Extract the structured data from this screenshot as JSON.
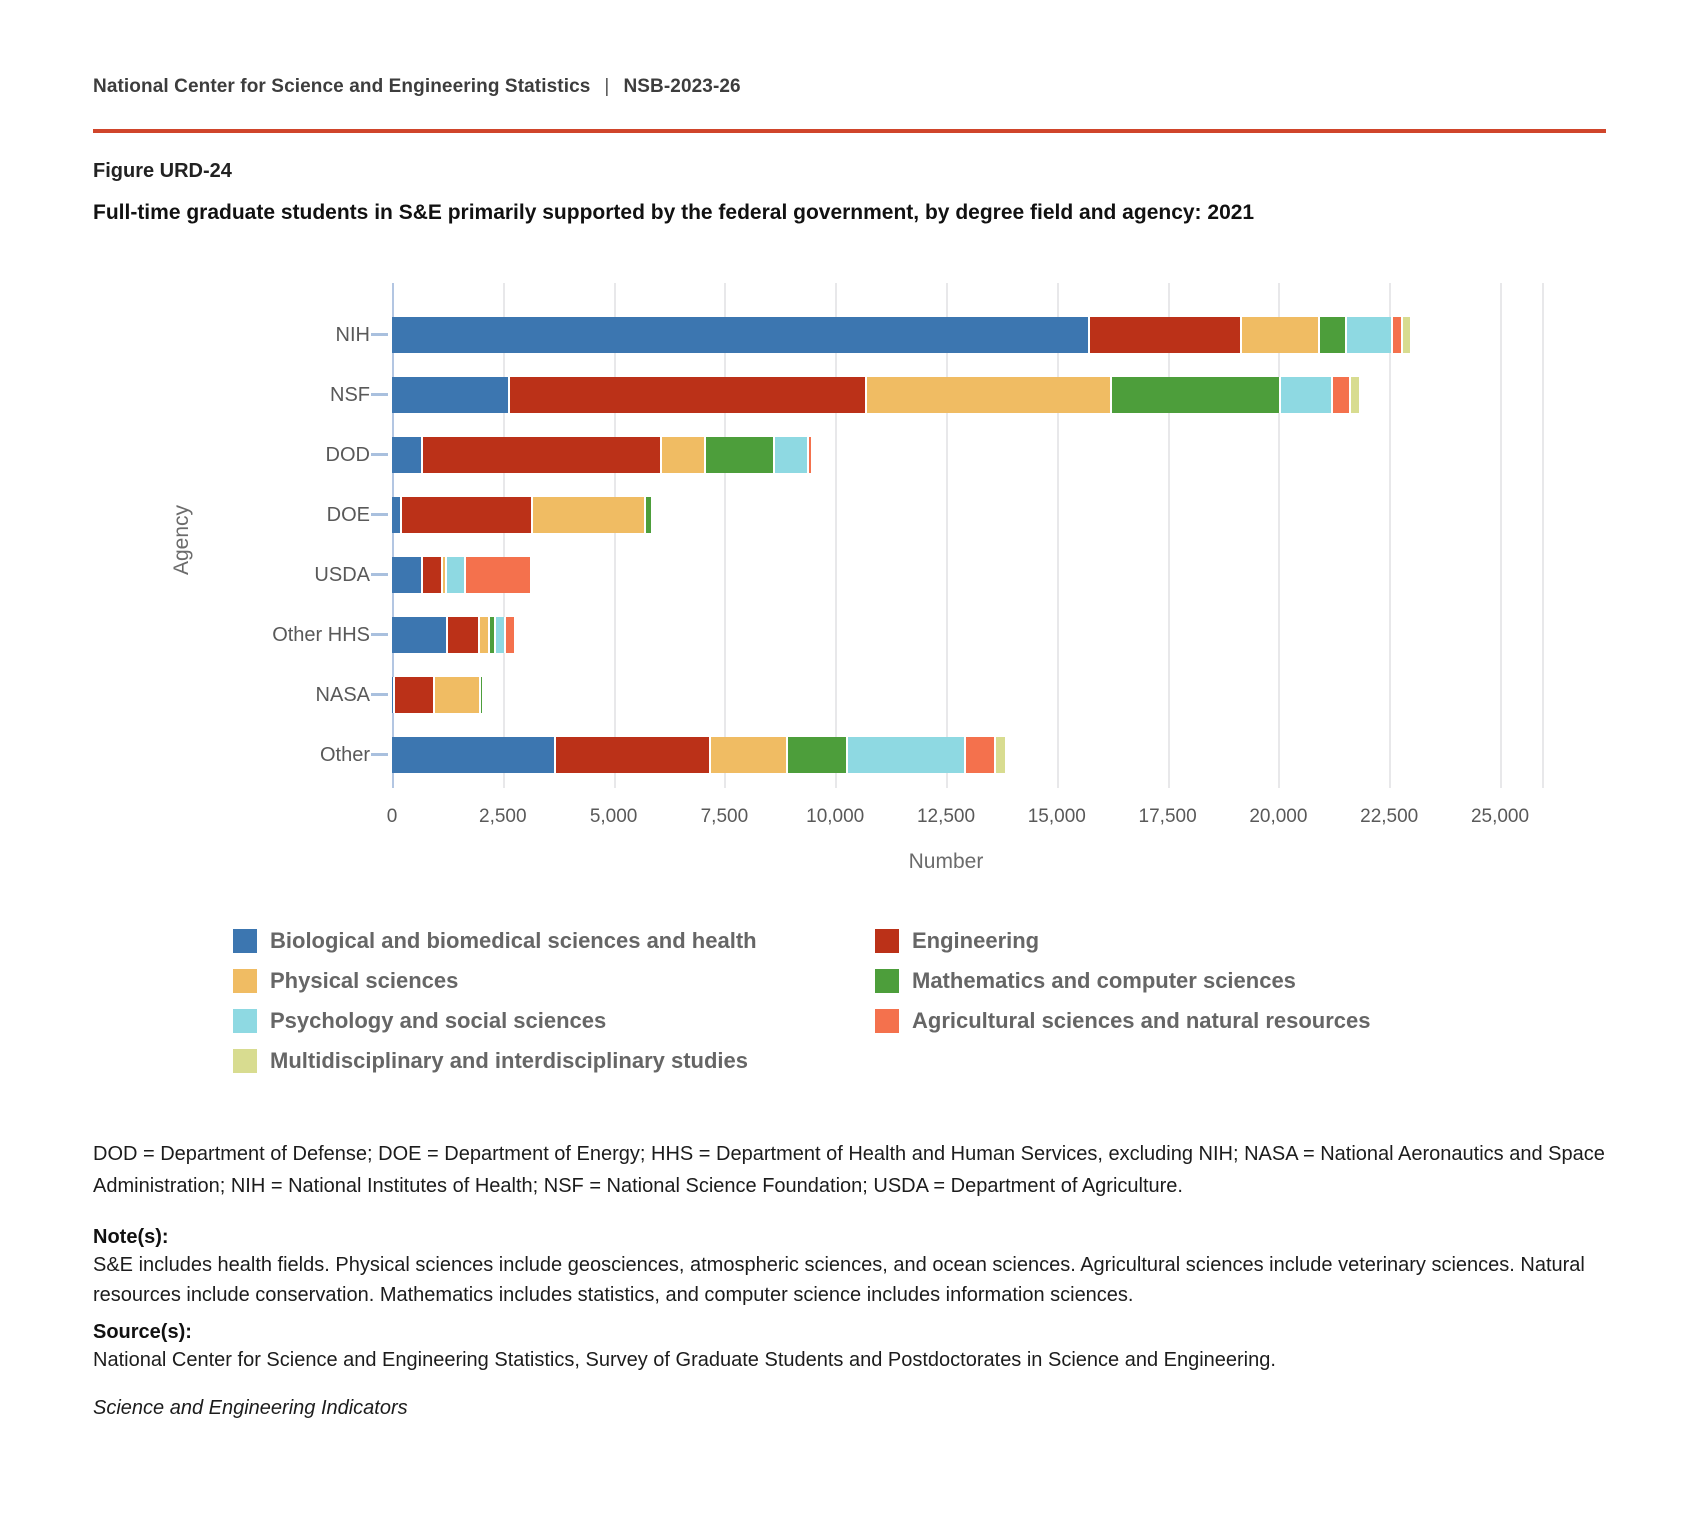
{
  "header": {
    "org": "National Center for Science and Engineering Statistics",
    "separator": "|",
    "report_id": "NSB-2023-26"
  },
  "figure": {
    "label": "Figure URD-24",
    "title": "Full-time graduate students in S&E primarily supported by the federal government, by degree field and agency: 2021"
  },
  "chart_data": {
    "type": "bar",
    "orientation": "horizontal",
    "stacked": true,
    "categories": [
      "NIH",
      "NSF",
      "DOD",
      "DOE",
      "USDA",
      "Other HHS",
      "NASA",
      "Other"
    ],
    "series": [
      {
        "name": "Biological and biomedical sciences and health",
        "color": "#3c76b0",
        "values": [
          15750,
          2660,
          690,
          230,
          710,
          1270,
          60,
          3700
        ]
      },
      {
        "name": "Engineering",
        "color": "#bb3118",
        "values": [
          3430,
          8050,
          5410,
          2950,
          430,
          710,
          900,
          3500
        ]
      },
      {
        "name": "Physical sciences",
        "color": "#f0bc63",
        "values": [
          1750,
          5540,
          990,
          2560,
          100,
          240,
          1050,
          1740
        ]
      },
      {
        "name": "Mathematics and computer sciences",
        "color": "#4d9e3b",
        "values": [
          610,
          3810,
          1560,
          160,
          0,
          130,
          60,
          1360
        ]
      },
      {
        "name": "Psychology and social sciences",
        "color": "#8ed9e2",
        "values": [
          1050,
          1170,
          750,
          0,
          420,
          230,
          0,
          2660
        ]
      },
      {
        "name": "Agricultural sciences and natural resources",
        "color": "#f4714d",
        "values": [
          230,
          400,
          90,
          0,
          1500,
          210,
          0,
          660
        ]
      },
      {
        "name": "Multidisciplinary and interdisciplinary studies",
        "color": "#d8dc90",
        "values": [
          190,
          230,
          0,
          0,
          0,
          0,
          0,
          250
        ]
      }
    ],
    "xlabel": "Number",
    "ylabel": "Agency",
    "xlim": [
      0,
      25000
    ],
    "xticks": [
      {
        "value": 0,
        "label": "0"
      },
      {
        "value": 2500,
        "label": "2,500"
      },
      {
        "value": 5000,
        "label": "5,000"
      },
      {
        "value": 7500,
        "label": "7,500"
      },
      {
        "value": 10000,
        "label": "10,000"
      },
      {
        "value": 12500,
        "label": "12,500"
      },
      {
        "value": 15000,
        "label": "15,000"
      },
      {
        "value": 17500,
        "label": "17,500"
      },
      {
        "value": 20000,
        "label": "20,000"
      },
      {
        "value": 22500,
        "label": "22,500"
      },
      {
        "value": 25000,
        "label": "25,000"
      }
    ],
    "grid": true,
    "legend_position": "bottom"
  },
  "footnotes": {
    "abbreviations": "DOD = Department of Defense; DOE = Department of Energy; HHS = Department of Health and Human Services, excluding NIH; NASA = National Aeronautics and Space Administration; NIH = National Institutes of Health; NSF = National Science Foundation; USDA = Department of Agriculture.",
    "notes_label": "Note(s):",
    "notes": "S&E includes health fields. Physical sciences include geosciences, atmospheric sciences, and ocean sciences. Agricultural sciences include veterinary sciences. Natural resources include conservation. Mathematics includes statistics, and computer science includes information sciences.",
    "source_label": "Source(s):",
    "source": "National Center for Science and Engineering Statistics, Survey of Graduate Students and Postdoctorates in Science and Engineering.",
    "publication": "Science and Engineering Indicators"
  },
  "style": {
    "accent_rule": "#d0452b",
    "gridline_color": "#e8e8ea",
    "axis_line_color": "#b3c6e2",
    "tick_dash_color": "#a9c0de",
    "label_color": "#595959",
    "legend_text_color": "#666666"
  }
}
